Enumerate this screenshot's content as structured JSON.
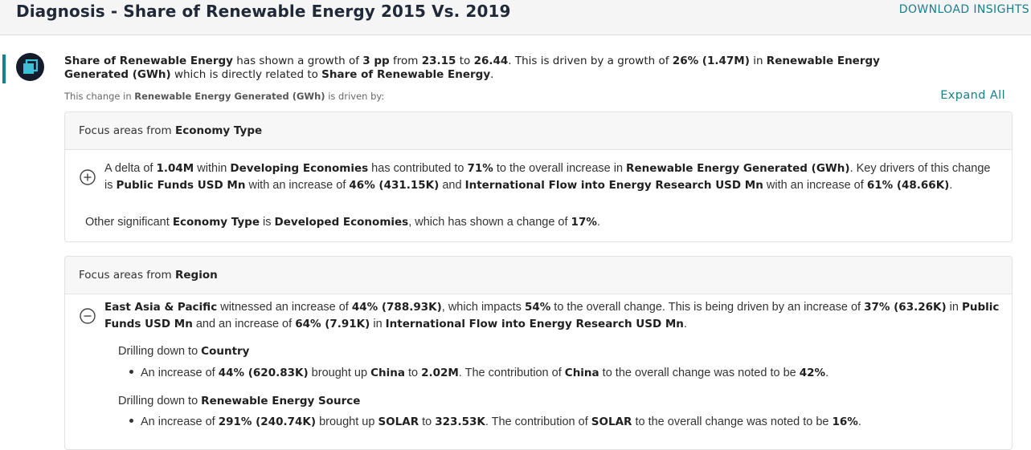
{
  "header": {
    "title": "Diagnosis - Share of Renewable Energy 2015 Vs. 2019",
    "download_label": "DOWNLOAD INSIGHTS"
  },
  "avatar_icon": "app-logo-icon",
  "summary": {
    "s1": "Share of Renewable Energy",
    "s2": " has shown a growth of ",
    "s3": "3 pp",
    "s4": " from ",
    "s5": "23.15",
    "s6": " to ",
    "s7": "26.44",
    "s8": ". This is driven by a growth of ",
    "s9": "26% (1.47M)",
    "s10": " in ",
    "s11": "Renewable Energy Generated (GWh)",
    "s12": " which is directly related to ",
    "s13": "Share of Renewable Energy",
    "s14": "."
  },
  "subtext": {
    "t1": "This change in ",
    "t2": "Renewable Energy Generated (GWh)",
    "t3": " is driven by:"
  },
  "expand_all_label": "Expand All",
  "economy": {
    "head_prefix": "Focus areas from ",
    "head_dimension": "Economy Type",
    "toggle_icon": "plus-circle-icon",
    "p1": "A delta of ",
    "p2": "1.04M",
    "p3": " within ",
    "p4": "Developing Economies",
    "p5": " has contributed to ",
    "p6": "71%",
    "p7": " to the overall increase in ",
    "p8": "Renewable Energy Generated (GWh)",
    "p9": ". Key drivers of this change is ",
    "p10": "Public Funds USD Mn",
    "p11": " with an increase of ",
    "p12": "46% (431.15K)",
    "p13": " and ",
    "p14": "International Flow into Energy Research USD Mn",
    "p15": " with an increase of ",
    "p16": "61% (48.66K)",
    "p17": ".",
    "o1": "Other significant ",
    "o2": "Economy Type",
    "o3": " is ",
    "o4": "Developed Economies",
    "o5": ", which has shown a change of ",
    "o6": "17%",
    "o7": "."
  },
  "region": {
    "head_prefix": "Focus areas from ",
    "head_dimension": "Region",
    "toggle_icon": "minus-circle-icon",
    "p1": "East Asia & Pacific",
    "p2": " witnessed an increase of ",
    "p3": "44% (788.93K)",
    "p4": ", which impacts ",
    "p5": "54%",
    "p6": " to the overall change. This is being driven by an increase of ",
    "p7": "37% (63.26K)",
    "p8": " in ",
    "p9": "Public Funds USD Mn",
    "p10": " and an increase of ",
    "p11": "64% (7.91K)",
    "p12": " in ",
    "p13": "International Flow into Energy Research USD Mn",
    "p14": ".",
    "drill_prefix": "Drilling down to ",
    "drill1_dim": "Country",
    "b1_1": "An increase of ",
    "b1_2": "44% (620.83K)",
    "b1_3": " brought up ",
    "b1_4": "China",
    "b1_5": " to ",
    "b1_6": "2.02M",
    "b1_7": ". The contribution of ",
    "b1_8": "China",
    "b1_9": " to the overall change was noted to be ",
    "b1_10": "42%",
    "b1_11": ".",
    "drill2_dim": "Renewable Energy Source",
    "b2_1": "An increase of ",
    "b2_2": "291% (240.74K)",
    "b2_3": " brought up ",
    "b2_4": "SOLAR",
    "b2_5": " to ",
    "b2_6": "323.53K",
    "b2_7": ". The contribution of ",
    "b2_8": "SOLAR",
    "b2_9": " to the overall change was noted to be ",
    "b2_10": "16%",
    "b2_11": "."
  },
  "colors": {
    "accent": "#17808a",
    "avatar_bg": "#141c2b"
  }
}
